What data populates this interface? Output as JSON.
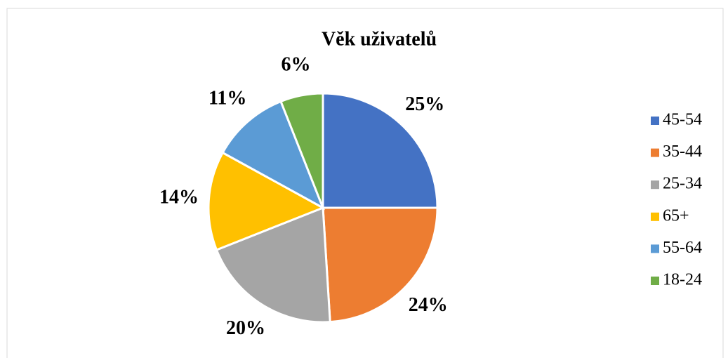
{
  "chart_data": {
    "type": "pie",
    "title": "Věk uživatelů",
    "categories": [
      "45-54",
      "35-44",
      "25-34",
      "65+",
      "55-64",
      "18-24"
    ],
    "values": [
      25,
      24,
      20,
      14,
      11,
      6
    ],
    "value_labels": [
      "25%",
      "24%",
      "20%",
      "14%",
      "11%",
      "6%"
    ],
    "colors": [
      "#4472c4",
      "#ed7d31",
      "#a5a5a5",
      "#ffc000",
      "#5b9bd5",
      "#70ad47"
    ],
    "legend": "right"
  }
}
